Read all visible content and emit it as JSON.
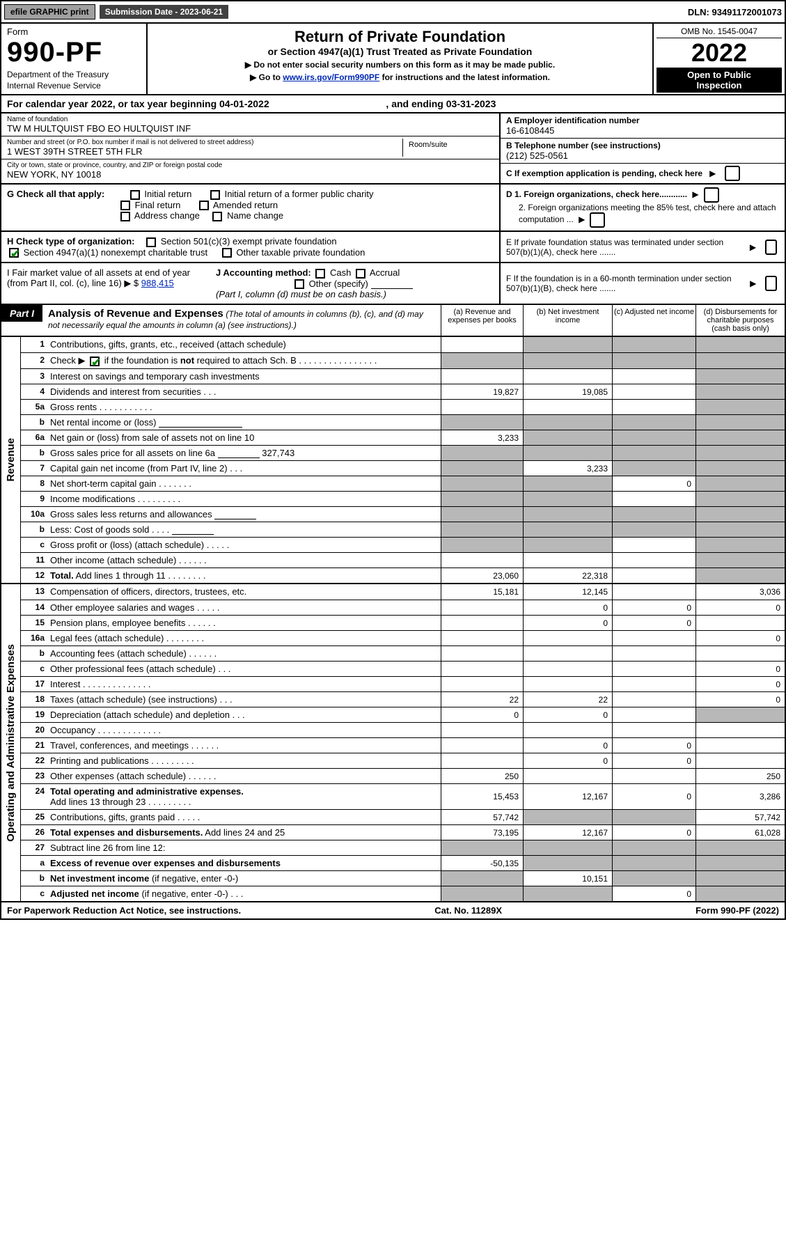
{
  "colors": {
    "link": "#0028b4",
    "check": "#0a8a0a",
    "grey_cell": "#b8b8b8",
    "btn_grey": "#a0a0a0",
    "band_dark": "#404040"
  },
  "topbar": {
    "efile": "efile GRAPHIC print",
    "sub_label": "Submission Date - 2023-06-21",
    "dln": "DLN: 93491172001073"
  },
  "head": {
    "form_word": "Form",
    "form_num": "990-PF",
    "dept1": "Department of the Treasury",
    "dept2": "Internal Revenue Service",
    "title": "Return of Private Foundation",
    "subtitle": "or Section 4947(a)(1) Trust Treated as Private Foundation",
    "note1": "▶ Do not enter social security numbers on this form as it may be made public.",
    "note2_pre": "▶ Go to ",
    "note2_link": "www.irs.gov/Form990PF",
    "note2_post": " for instructions and the latest information.",
    "omb": "OMB No. 1545-0047",
    "year": "2022",
    "open1": "Open to Public",
    "open2": "Inspection"
  },
  "calrow": {
    "pre": "For calendar year 2022, or tax year beginning ",
    "begin": "04-01-2022",
    "mid": " , and ending ",
    "end": "03-31-2023"
  },
  "info": {
    "name_lbl": "Name of foundation",
    "name_val": "TW M HULTQUIST FBO EO HULTQUIST INF",
    "addr_lbl": "Number and street (or P.O. box number if mail is not delivered to street address)",
    "addr_val": "1 WEST 39TH STREET 5TH FLR",
    "room_lbl": "Room/suite",
    "city_lbl": "City or town, state or province, country, and ZIP or foreign postal code",
    "city_val": "NEW YORK, NY  10018",
    "a_lbl": "A Employer identification number",
    "a_val": "16-6108445",
    "b_lbl": "B Telephone number (see instructions)",
    "b_val": "(212) 525-0561",
    "c_lbl": "C If exemption application is pending, check here",
    "d1": "D 1. Foreign organizations, check here............",
    "d2": "2. Foreign organizations meeting the 85% test, check here and attach computation ...",
    "e": "E  If private foundation status was terminated under section 507(b)(1)(A), check here .......",
    "f": "F  If the foundation is in a 60-month termination under section 507(b)(1)(B), check here .......",
    "g_lbl": "G Check all that apply:",
    "g_opts": [
      "Initial return",
      "Initial return of a former public charity",
      "Final return",
      "Amended return",
      "Address change",
      "Name change"
    ],
    "h_lbl": "H Check type of organization:",
    "h1": "Section 501(c)(3) exempt private foundation",
    "h2": "Section 4947(a)(1) nonexempt charitable trust",
    "h3": "Other taxable private foundation",
    "i_lbl": "I Fair market value of all assets at end of year (from Part II, col. (c), line 16) ▶ $",
    "i_val": "988,415",
    "j_lbl": "J Accounting method:",
    "j_opts": [
      "Cash",
      "Accrual",
      "Other (specify)"
    ],
    "j_note": "(Part I, column (d) must be on cash basis.)"
  },
  "part": {
    "label": "Part I",
    "title": "Analysis of Revenue and Expenses",
    "title_note": "(The total of amounts in columns (b), (c), and (d) may not necessarily equal the amounts in column (a) (see instructions).)",
    "col_a": "(a)   Revenue and expenses per books",
    "col_b": "(b)   Net investment income",
    "col_c": "(c)   Adjusted net income",
    "col_d": "(d)   Disbursements for charitable purposes (cash basis only)"
  },
  "sides": {
    "rev": "Revenue",
    "exp": "Operating and Administrative Expenses"
  },
  "rows": [
    {
      "n": "1",
      "d": "g",
      "a": "",
      "b": "g",
      "c": "g"
    },
    {
      "n": "2",
      "d": "g",
      "a": "g",
      "b": "g",
      "c": "g",
      "chk": true
    },
    {
      "n": "3",
      "d": "g",
      "a": "",
      "b": "",
      "c": ""
    },
    {
      "n": "4",
      "d": "g",
      "a": "19,827",
      "b": "19,085",
      "c": ""
    },
    {
      "n": "5a",
      "d": "g",
      "a": "",
      "b": "",
      "c": ""
    },
    {
      "n": "b",
      "d": "g",
      "a": "g",
      "b": "g",
      "c": "g"
    },
    {
      "n": "6a",
      "d": "g",
      "a": "3,233",
      "b": "g",
      "c": "g"
    },
    {
      "n": "b",
      "d": "g",
      "a": "g",
      "b": "g",
      "c": "g"
    },
    {
      "n": "7",
      "d": "g",
      "a": "g",
      "b": "3,233",
      "c": "g"
    },
    {
      "n": "8",
      "d": "g",
      "a": "g",
      "b": "g",
      "c": "0"
    },
    {
      "n": "9",
      "d": "g",
      "a": "g",
      "b": "g",
      "c": ""
    },
    {
      "n": "10a",
      "d": "g",
      "a": "g",
      "b": "g",
      "c": "g"
    },
    {
      "n": "b",
      "d": "g",
      "a": "g",
      "b": "g",
      "c": "g"
    },
    {
      "n": "c",
      "d": "g",
      "a": "g",
      "b": "g",
      "c": ""
    },
    {
      "n": "11",
      "d": "g",
      "a": "",
      "b": "",
      "c": ""
    },
    {
      "n": "12",
      "d": "g",
      "a": "23,060",
      "b": "22,318",
      "c": "",
      "bold": true
    }
  ],
  "exp_rows": [
    {
      "n": "13",
      "d": "3,036",
      "a": "15,181",
      "b": "12,145",
      "c": ""
    },
    {
      "n": "14",
      "d": "0",
      "a": "",
      "b": "0",
      "c": "0"
    },
    {
      "n": "15",
      "d": "",
      "a": "",
      "b": "0",
      "c": "0"
    },
    {
      "n": "16a",
      "d": "0",
      "a": "",
      "b": "",
      "c": ""
    },
    {
      "n": "b",
      "d": "",
      "a": "",
      "b": "",
      "c": ""
    },
    {
      "n": "c",
      "d": "0",
      "a": "",
      "b": "",
      "c": ""
    },
    {
      "n": "17",
      "d": "0",
      "a": "",
      "b": "",
      "c": ""
    },
    {
      "n": "18",
      "d": "0",
      "a": "22",
      "b": "22",
      "c": ""
    },
    {
      "n": "19",
      "d": "g",
      "a": "0",
      "b": "0",
      "c": ""
    },
    {
      "n": "20",
      "d": "",
      "a": "",
      "b": "",
      "c": ""
    },
    {
      "n": "21",
      "d": "",
      "a": "",
      "b": "0",
      "c": "0"
    },
    {
      "n": "22",
      "d": "",
      "a": "",
      "b": "0",
      "c": "0"
    },
    {
      "n": "23",
      "d": "250",
      "a": "250",
      "b": "",
      "c": ""
    },
    {
      "n": "24",
      "d": "3,286",
      "a": "15,453",
      "b": "12,167",
      "c": "0",
      "bold": true
    },
    {
      "n": "25",
      "d": "57,742",
      "a": "57,742",
      "b": "g",
      "c": "g"
    },
    {
      "n": "26",
      "d": "61,028",
      "a": "73,195",
      "b": "12,167",
      "c": "0",
      "bold": true
    },
    {
      "n": "27",
      "d": "g",
      "a": "g",
      "b": "g",
      "c": "g"
    },
    {
      "n": "a",
      "d": "g",
      "a": "-50,135",
      "b": "g",
      "c": "g",
      "bold": true
    },
    {
      "n": "b",
      "d": "g",
      "a": "g",
      "b": "10,151",
      "c": "g",
      "bold": true
    },
    {
      "n": "c",
      "d": "g",
      "a": "g",
      "b": "g",
      "c": "0",
      "bold": true
    }
  ],
  "footer": {
    "left": "For Paperwork Reduction Act Notice, see instructions.",
    "mid": "Cat. No. 11289X",
    "right": "Form 990-PF (2022)"
  }
}
